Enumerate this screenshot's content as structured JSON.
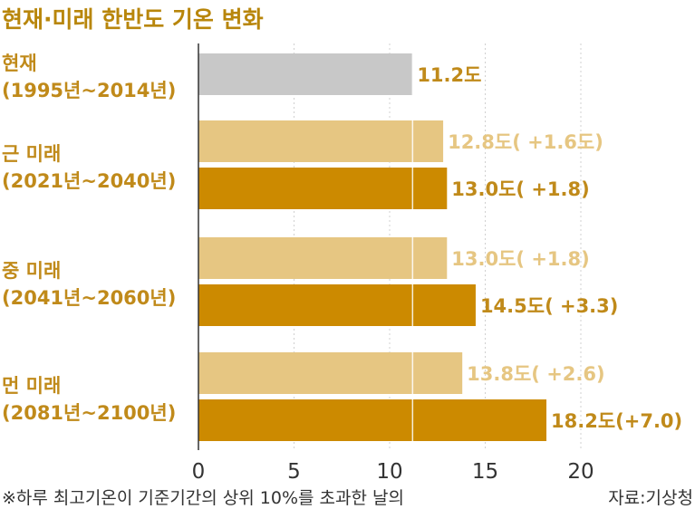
{
  "chart_data": {
    "type": "bar",
    "orientation": "horizontal",
    "title": "현재·미래 한반도 기온 변화",
    "xlim": [
      0,
      20
    ],
    "x_ticks": [
      "0",
      "5",
      "10",
      "15",
      "20"
    ],
    "grid": true,
    "groups": [
      {
        "label_line1": "현재",
        "label_line2": "(1995년~2014년)",
        "bars": [
          {
            "value": 11.2,
            "label": "11.2도",
            "color": "#c8c8c8",
            "label_color": "#c08a1a"
          }
        ]
      },
      {
        "label_line1": "근 미래",
        "label_line2": "(2021년~2040년)",
        "bars": [
          {
            "value": 12.8,
            "label": "12.8도( +1.6도)",
            "color": "#e6c682",
            "label_color": "#e6c682"
          },
          {
            "value": 13.0,
            "label": "13.0도( +1.8)",
            "color": "#cc8a00",
            "label_color": "#c08a1a"
          }
        ]
      },
      {
        "label_line1": "중 미래",
        "label_line2": "(2041년~2060년)",
        "bars": [
          {
            "value": 13.0,
            "label": "13.0도( +1.8)",
            "color": "#e6c682",
            "label_color": "#e6c682"
          },
          {
            "value": 14.5,
            "label": "14.5도( +3.3)",
            "color": "#cc8a00",
            "label_color": "#c08a1a"
          }
        ]
      },
      {
        "label_line1": "먼 미래",
        "label_line2": "(2081년~2100년)",
        "bars": [
          {
            "value": 13.8,
            "label": "13.8도( +2.6)",
            "color": "#e6c682",
            "label_color": "#e6c682"
          },
          {
            "value": 18.2,
            "label": "18.2도(+7.0)",
            "color": "#cc8a00",
            "label_color": "#c08a1a"
          }
        ]
      }
    ],
    "reference_line": {
      "value": 11.2
    },
    "footnote": "※하루 최고기온이 기준기간의 상위 10%를 초과한 날의",
    "source": "자료:기상청"
  }
}
